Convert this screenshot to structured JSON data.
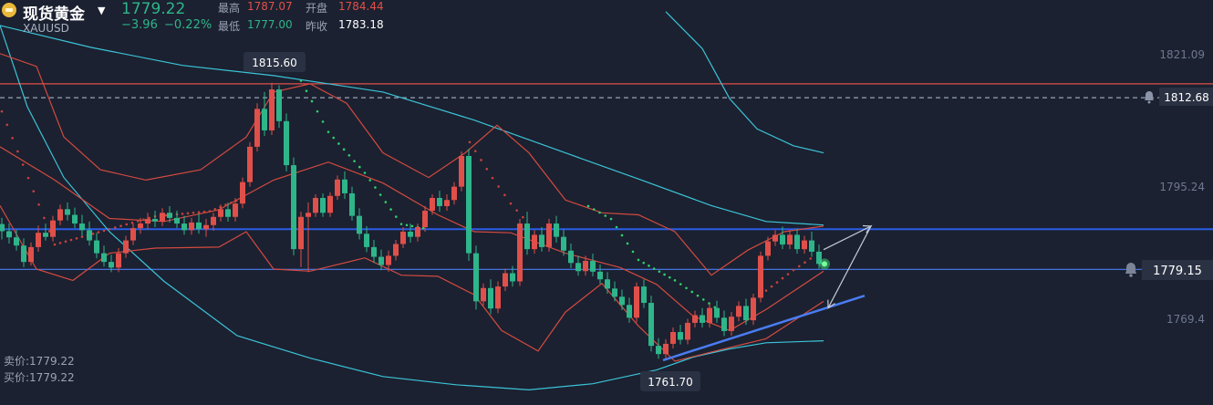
{
  "header": {
    "name": "现货黄金",
    "symbol": "XAUUSD",
    "price": "1779.22",
    "change": "−3.96",
    "change_pct": "−0.22%",
    "high_label": "最高",
    "high_value": "1787.07",
    "open_label": "开盘",
    "open_value": "1784.44",
    "low_label": "最低",
    "low_value": "1777.00",
    "prev_label": "昨收",
    "prev_value": "1783.18"
  },
  "footer": {
    "sell": "卖价:1779.22",
    "buy": "买价:1779.22"
  },
  "colors": {
    "background": "#1b2130",
    "up": "#e0504a",
    "down": "#2fb58a",
    "channel": "#d34a40",
    "ma_long": "#3cc3d8",
    "blue_line": "#2b5ce6"
  },
  "chart_data": {
    "type": "candlestick",
    "y_ticks": [
      1821.09,
      1795.24,
      1769.4
    ],
    "ylim": [
      1756.6,
      1828.7
    ],
    "price_marks": [
      {
        "text": "1812.68",
        "value": 1812.68,
        "alert_icon": "bell-icon"
      },
      {
        "text": "1779.15",
        "value": 1779.15,
        "alert_icon": "bell-icon"
      }
    ],
    "annotations": [
      {
        "text": "1815.60",
        "value": 1815.6,
        "kind": "high"
      },
      {
        "text": "1761.70",
        "value": 1761.7,
        "kind": "low"
      }
    ],
    "horizontal_lines": [
      {
        "value": 1815.4,
        "color": "#e0504a",
        "style": "solid"
      },
      {
        "value": 1812.68,
        "color": "#9aa3b5",
        "style": "dashed"
      },
      {
        "value": 1787.0,
        "color": "#2b5ce6",
        "style": "solid"
      },
      {
        "value": 1779.15,
        "color": "#4a7cf2",
        "style": "solid"
      }
    ],
    "trendline": [
      [
        727,
        1761.4
      ],
      [
        948,
        1774.0
      ]
    ],
    "projection": [
      [
        903,
        1783.0
      ],
      [
        955,
        1787.6
      ],
      [
        908,
        1771.6
      ]
    ],
    "ma_long": [
      [
        0,
        1826.8
      ],
      [
        30,
        1810.9
      ],
      [
        70,
        1797.1
      ],
      [
        120,
        1786.5
      ],
      [
        180,
        1776.8
      ],
      [
        260,
        1766.2
      ],
      [
        340,
        1761.8
      ],
      [
        420,
        1758.2
      ],
      [
        500,
        1756.6
      ],
      [
        580,
        1755.6
      ],
      [
        650,
        1756.8
      ],
      [
        720,
        1759.5
      ],
      [
        760,
        1762.0
      ],
      [
        800,
        1763.6
      ],
      [
        840,
        1764.8
      ],
      [
        903,
        1765.2
      ]
    ],
    "ma_mid": [
      [
        0,
        1826.8
      ],
      [
        100,
        1822.5
      ],
      [
        200,
        1819.0
      ],
      [
        300,
        1817.0
      ],
      [
        420,
        1813.8
      ],
      [
        520,
        1808.3
      ],
      [
        620,
        1801.9
      ],
      [
        700,
        1796.8
      ],
      [
        780,
        1791.6
      ],
      [
        840,
        1788.5
      ],
      [
        903,
        1787.8
      ]
    ],
    "ma_upper": [
      [
        730,
        1829.5
      ],
      [
        770,
        1822.3
      ],
      [
        800,
        1812.5
      ],
      [
        830,
        1806.6
      ],
      [
        870,
        1803.3
      ],
      [
        903,
        1801.9
      ]
    ],
    "bb_upper": [
      [
        0,
        1821.3
      ],
      [
        40,
        1818.8
      ],
      [
        70,
        1805.0
      ],
      [
        110,
        1798.6
      ],
      [
        160,
        1796.6
      ],
      [
        220,
        1798.6
      ],
      [
        270,
        1805.0
      ],
      [
        300,
        1813.8
      ],
      [
        340,
        1815.4
      ],
      [
        380,
        1811.6
      ],
      [
        420,
        1801.9
      ],
      [
        470,
        1797.1
      ],
      [
        510,
        1801.9
      ],
      [
        545,
        1807.3
      ],
      [
        580,
        1801.9
      ],
      [
        620,
        1792.7
      ],
      [
        660,
        1790.2
      ],
      [
        700,
        1789.8
      ],
      [
        740,
        1786.5
      ],
      [
        780,
        1778.0
      ],
      [
        820,
        1782.9
      ],
      [
        860,
        1786.5
      ],
      [
        903,
        1787.6
      ]
    ],
    "bb_mid": [
      [
        0,
        1803.1
      ],
      [
        60,
        1796.6
      ],
      [
        120,
        1789.1
      ],
      [
        180,
        1788.5
      ],
      [
        240,
        1790.8
      ],
      [
        300,
        1796.6
      ],
      [
        360,
        1800.1
      ],
      [
        420,
        1796.0
      ],
      [
        480,
        1789.8
      ],
      [
        520,
        1786.5
      ],
      [
        560,
        1786.3
      ],
      [
        620,
        1782.3
      ],
      [
        680,
        1779.5
      ],
      [
        720,
        1776.2
      ],
      [
        760,
        1770.0
      ],
      [
        800,
        1767.2
      ],
      [
        840,
        1771.3
      ],
      [
        903,
        1778.8
      ]
    ],
    "bb_lower": [
      [
        0,
        1791.6
      ],
      [
        40,
        1779.2
      ],
      [
        80,
        1777.0
      ],
      [
        120,
        1782.3
      ],
      [
        170,
        1783.3
      ],
      [
        240,
        1783.5
      ],
      [
        270,
        1786.5
      ],
      [
        300,
        1779.2
      ],
      [
        340,
        1778.8
      ],
      [
        400,
        1781.4
      ],
      [
        440,
        1778.0
      ],
      [
        480,
        1777.8
      ],
      [
        520,
        1774.2
      ],
      [
        550,
        1767.2
      ],
      [
        590,
        1763.2
      ],
      [
        620,
        1770.8
      ],
      [
        660,
        1776.4
      ],
      [
        700,
        1768.1
      ],
      [
        740,
        1761.2
      ],
      [
        780,
        1763.0
      ],
      [
        840,
        1765.6
      ],
      [
        903,
        1772.9
      ]
    ],
    "candles": [
      [
        2,
        1788.0,
        1789.2,
        1785.0,
        1786.6
      ],
      [
        10,
        1786.6,
        1788.1,
        1784.2,
        1785.4
      ],
      [
        18,
        1785.4,
        1786.9,
        1782.8,
        1783.8
      ],
      [
        26,
        1783.8,
        1785.2,
        1779.6,
        1780.6
      ],
      [
        34,
        1780.6,
        1784.4,
        1779.9,
        1783.5
      ],
      [
        42,
        1783.5,
        1787.7,
        1782.6,
        1786.3
      ],
      [
        50,
        1786.3,
        1788.1,
        1784.8,
        1785.5
      ],
      [
        58,
        1785.5,
        1789.6,
        1784.6,
        1788.7
      ],
      [
        66,
        1788.7,
        1791.8,
        1787.8,
        1790.9
      ],
      [
        74,
        1790.9,
        1792.2,
        1788.7,
        1789.8
      ],
      [
        82,
        1789.8,
        1791.2,
        1787.2,
        1788.1
      ],
      [
        90,
        1788.1,
        1789.8,
        1785.7,
        1786.8
      ],
      [
        98,
        1786.8,
        1788.5,
        1783.8,
        1784.8
      ],
      [
        106,
        1784.8,
        1786.3,
        1781.3,
        1782.3
      ],
      [
        114,
        1782.3,
        1783.8,
        1779.7,
        1780.6
      ],
      [
        122,
        1780.6,
        1782.0,
        1778.6,
        1779.5
      ],
      [
        130,
        1779.5,
        1783.3,
        1778.6,
        1782.3
      ],
      [
        138,
        1782.3,
        1785.7,
        1781.4,
        1784.8
      ],
      [
        146,
        1784.8,
        1788.1,
        1783.9,
        1787.2
      ],
      [
        154,
        1787.2,
        1789.2,
        1786.1,
        1788.1
      ],
      [
        162,
        1788.1,
        1790.2,
        1787.0,
        1789.0
      ],
      [
        170,
        1789.0,
        1790.6,
        1787.4,
        1788.5
      ],
      [
        178,
        1788.5,
        1791.1,
        1787.6,
        1790.2
      ],
      [
        186,
        1790.2,
        1791.5,
        1788.3,
        1789.2
      ],
      [
        194,
        1789.2,
        1790.6,
        1787.2,
        1788.1
      ],
      [
        202,
        1788.1,
        1789.6,
        1785.9,
        1786.8
      ],
      [
        210,
        1786.8,
        1789.2,
        1785.9,
        1788.3
      ],
      [
        218,
        1788.3,
        1790.0,
        1786.1,
        1787.0
      ],
      [
        226,
        1787.0,
        1789.0,
        1785.5,
        1787.8
      ],
      [
        234,
        1787.8,
        1790.2,
        1786.7,
        1789.4
      ],
      [
        242,
        1789.4,
        1791.8,
        1788.5,
        1790.9
      ],
      [
        250,
        1790.9,
        1792.2,
        1788.5,
        1789.4
      ],
      [
        258,
        1789.4,
        1793.1,
        1788.5,
        1792.0
      ],
      [
        266,
        1792.0,
        1797.1,
        1791.1,
        1796.2
      ],
      [
        274,
        1796.2,
        1804.0,
        1795.3,
        1803.1
      ],
      [
        282,
        1803.1,
        1811.6,
        1802.2,
        1810.5
      ],
      [
        290,
        1810.5,
        1813.8,
        1805.2,
        1806.3
      ],
      [
        298,
        1806.3,
        1815.6,
        1805.4,
        1814.3
      ],
      [
        306,
        1814.3,
        1815.1,
        1806.8,
        1808.1
      ],
      [
        314,
        1808.1,
        1809.6,
        1798.3,
        1799.5
      ],
      [
        322,
        1799.5,
        1801.0,
        1781.9,
        1783.1
      ],
      [
        330,
        1783.1,
        1790.4,
        1779.6,
        1789.4
      ],
      [
        338,
        1789.4,
        1792.2,
        1778.6,
        1790.2
      ],
      [
        346,
        1790.2,
        1793.8,
        1789.4,
        1793.1
      ],
      [
        354,
        1793.1,
        1794.0,
        1789.4,
        1790.2
      ],
      [
        362,
        1790.2,
        1794.2,
        1789.4,
        1793.5
      ],
      [
        370,
        1793.5,
        1797.5,
        1792.7,
        1796.7
      ],
      [
        378,
        1796.7,
        1798.3,
        1792.9,
        1794.0
      ],
      [
        386,
        1794.0,
        1795.3,
        1788.7,
        1789.6
      ],
      [
        394,
        1789.6,
        1791.1,
        1785.0,
        1786.1
      ],
      [
        402,
        1786.1,
        1787.6,
        1782.5,
        1783.5
      ],
      [
        410,
        1783.5,
        1784.9,
        1780.4,
        1781.6
      ],
      [
        418,
        1781.6,
        1783.0,
        1779.0,
        1780.0
      ],
      [
        426,
        1780.0,
        1782.8,
        1778.7,
        1781.8
      ],
      [
        434,
        1781.8,
        1784.9,
        1780.9,
        1784.1
      ],
      [
        442,
        1784.1,
        1787.4,
        1783.3,
        1786.5
      ],
      [
        450,
        1786.5,
        1788.1,
        1784.4,
        1785.5
      ],
      [
        458,
        1785.5,
        1788.1,
        1784.6,
        1787.4
      ],
      [
        466,
        1787.4,
        1791.5,
        1786.5,
        1790.6
      ],
      [
        474,
        1790.6,
        1793.8,
        1789.8,
        1793.1
      ],
      [
        482,
        1793.1,
        1794.5,
        1790.4,
        1791.5
      ],
      [
        490,
        1791.5,
        1793.8,
        1790.6,
        1792.7
      ],
      [
        498,
        1792.7,
        1796.2,
        1791.8,
        1795.3
      ],
      [
        506,
        1795.3,
        1802.2,
        1794.4,
        1801.3
      ],
      [
        514,
        1801.3,
        1802.7,
        1780.8,
        1782.3
      ],
      [
        522,
        1782.3,
        1783.8,
        1771.3,
        1772.9
      ],
      [
        530,
        1772.9,
        1776.4,
        1772.0,
        1775.5
      ],
      [
        538,
        1775.5,
        1777.2,
        1770.4,
        1771.5
      ],
      [
        546,
        1771.5,
        1776.8,
        1770.6,
        1775.8
      ],
      [
        554,
        1775.8,
        1779.3,
        1774.9,
        1778.4
      ],
      [
        562,
        1778.4,
        1779.8,
        1775.8,
        1776.8
      ],
      [
        570,
        1776.8,
        1789.0,
        1775.9,
        1788.1
      ],
      [
        578,
        1788.1,
        1790.4,
        1782.0,
        1783.1
      ],
      [
        586,
        1783.1,
        1786.8,
        1782.2,
        1785.9
      ],
      [
        594,
        1785.9,
        1787.4,
        1782.6,
        1783.5
      ],
      [
        602,
        1783.5,
        1789.0,
        1782.6,
        1788.1
      ],
      [
        610,
        1788.1,
        1789.6,
        1784.4,
        1785.5
      ],
      [
        618,
        1785.5,
        1786.9,
        1781.8,
        1782.8
      ],
      [
        626,
        1782.8,
        1784.2,
        1779.4,
        1780.4
      ],
      [
        634,
        1780.4,
        1781.8,
        1777.9,
        1778.8
      ],
      [
        642,
        1778.8,
        1781.8,
        1777.9,
        1780.8
      ],
      [
        650,
        1780.8,
        1782.2,
        1777.8,
        1778.7
      ],
      [
        658,
        1778.7,
        1780.1,
        1776.3,
        1777.2
      ],
      [
        666,
        1777.2,
        1778.6,
        1774.4,
        1775.4
      ],
      [
        674,
        1775.4,
        1776.8,
        1772.9,
        1773.8
      ],
      [
        682,
        1773.8,
        1775.2,
        1771.2,
        1772.2
      ],
      [
        690,
        1772.2,
        1773.6,
        1768.7,
        1769.7
      ],
      [
        698,
        1769.7,
        1776.6,
        1768.8,
        1775.8
      ],
      [
        706,
        1775.8,
        1777.2,
        1771.6,
        1772.6
      ],
      [
        714,
        1772.6,
        1774.0,
        1763.1,
        1764.2
      ],
      [
        722,
        1764.2,
        1765.7,
        1761.7,
        1762.6
      ],
      [
        730,
        1762.6,
        1765.5,
        1761.7,
        1764.6
      ],
      [
        738,
        1764.6,
        1767.8,
        1763.7,
        1766.9
      ],
      [
        746,
        1766.9,
        1768.3,
        1764.5,
        1765.4
      ],
      [
        754,
        1765.4,
        1769.5,
        1764.5,
        1768.7
      ],
      [
        762,
        1768.7,
        1771.1,
        1767.8,
        1770.2
      ],
      [
        770,
        1770.2,
        1771.6,
        1767.8,
        1768.7
      ],
      [
        778,
        1768.7,
        1772.4,
        1767.8,
        1771.6
      ],
      [
        786,
        1771.6,
        1773.0,
        1768.7,
        1769.7
      ],
      [
        794,
        1769.7,
        1771.1,
        1766.1,
        1767.1
      ],
      [
        802,
        1767.1,
        1770.8,
        1766.2,
        1769.9
      ],
      [
        810,
        1769.9,
        1772.9,
        1769.0,
        1772.0
      ],
      [
        818,
        1772.0,
        1773.4,
        1768.3,
        1769.2
      ],
      [
        826,
        1769.2,
        1774.4,
        1768.3,
        1773.6
      ],
      [
        834,
        1773.6,
        1782.6,
        1772.7,
        1781.8
      ],
      [
        842,
        1781.8,
        1785.5,
        1780.9,
        1784.6
      ],
      [
        850,
        1784.6,
        1786.8,
        1783.7,
        1785.9
      ],
      [
        858,
        1785.9,
        1787.5,
        1783.1,
        1784.0
      ],
      [
        866,
        1784.0,
        1786.8,
        1783.1,
        1785.9
      ],
      [
        874,
        1785.9,
        1787.1,
        1782.2,
        1783.1
      ],
      [
        882,
        1783.1,
        1785.7,
        1782.2,
        1784.8
      ],
      [
        890,
        1784.8,
        1786.5,
        1781.6,
        1782.6
      ],
      [
        898,
        1782.6,
        1784.0,
        1779.3,
        1780.2
      ]
    ]
  }
}
